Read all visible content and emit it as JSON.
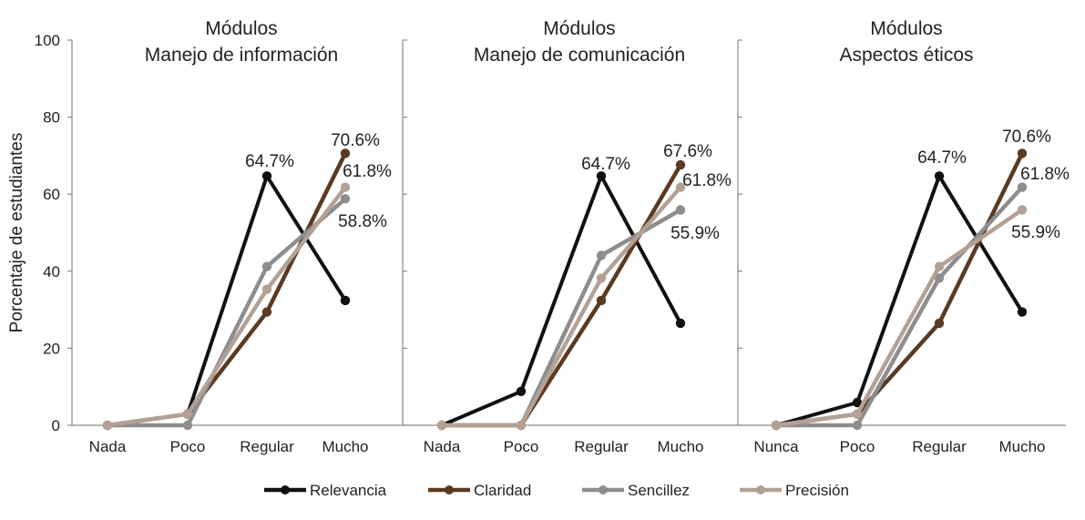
{
  "chart_data": {
    "type": "line",
    "ylabel": "Porcentaje de estudiantes",
    "ylim": [
      0,
      100
    ],
    "yticks": [
      "0",
      "20",
      "40",
      "60",
      "80",
      "100"
    ],
    "legend": [
      {
        "name": "Relevancia",
        "color": "#111111"
      },
      {
        "name": "Claridad",
        "color": "#5b3a22"
      },
      {
        "name": "Sencillez",
        "color": "#8d8d8f"
      },
      {
        "name": "Precisión",
        "color": "#b3a195"
      }
    ],
    "panels": [
      {
        "title_line1": "Módulos",
        "title_line2": "Manejo de información",
        "categories": [
          "Nada",
          "Poco",
          "Regular",
          "Mucho"
        ],
        "series": [
          {
            "name": "Relevancia",
            "values": [
              0,
              2.9,
              64.7,
              32.4
            ]
          },
          {
            "name": "Claridad",
            "values": [
              0,
              2.9,
              29.4,
              70.6
            ]
          },
          {
            "name": "Sencillez",
            "values": [
              0,
              0,
              41.2,
              58.8
            ]
          },
          {
            "name": "Precisión",
            "values": [
              0,
              2.9,
              35.3,
              61.8
            ]
          }
        ],
        "labels": [
          "64.7%",
          "70.6%",
          "61.8%",
          "58.8%"
        ]
      },
      {
        "title_line1": "Módulos",
        "title_line2": "Manejo de comunicación",
        "categories": [
          "Nada",
          "Poco",
          "Regular",
          "Mucho"
        ],
        "series": [
          {
            "name": "Relevancia",
            "values": [
              0,
              8.8,
              64.7,
              26.5
            ]
          },
          {
            "name": "Claridad",
            "values": [
              0,
              0,
              32.4,
              67.6
            ]
          },
          {
            "name": "Sencillez",
            "values": [
              0,
              0,
              44.1,
              55.9
            ]
          },
          {
            "name": "Precisión",
            "values": [
              0,
              0,
              38.2,
              61.8
            ]
          }
        ],
        "labels": [
          "64.7%",
          "67.6%",
          "61.8%",
          "55.9%"
        ]
      },
      {
        "title_line1": "Módulos",
        "title_line2": "Aspectos éticos",
        "categories": [
          "Nunca",
          "Poco",
          "Regular",
          "Mucho"
        ],
        "series": [
          {
            "name": "Relevancia",
            "values": [
              0,
              5.9,
              64.7,
              29.4
            ]
          },
          {
            "name": "Claridad",
            "values": [
              0,
              2.9,
              26.5,
              70.6
            ]
          },
          {
            "name": "Sencillez",
            "values": [
              0,
              0,
              38.2,
              61.8
            ]
          },
          {
            "name": "Precisión",
            "values": [
              0,
              2.9,
              41.2,
              55.9
            ]
          }
        ],
        "labels": [
          "64.7%",
          "70.6%",
          "61.8%",
          "55.9%"
        ]
      }
    ]
  }
}
